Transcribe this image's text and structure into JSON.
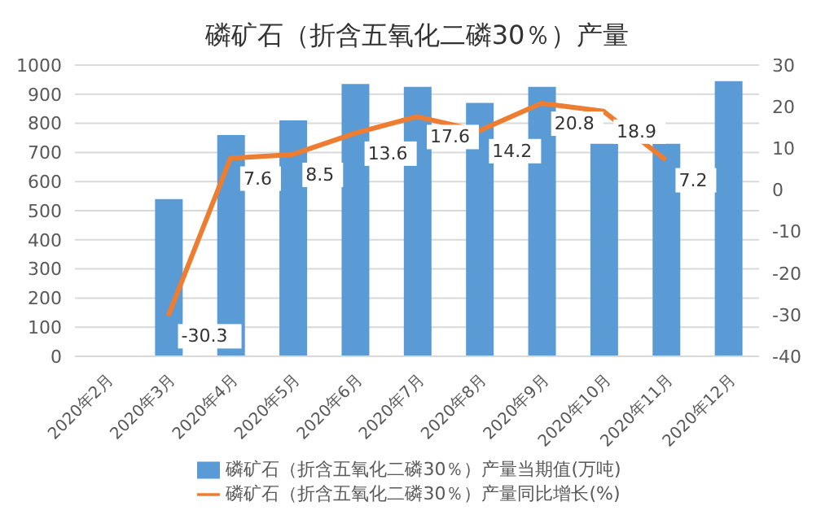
{
  "chart_data": {
    "type": "bar",
    "title": "磷矿石（折含五氧化二磷30％）产量",
    "categories": [
      "2020年2月",
      "2020年3月",
      "2020年4月",
      "2020年5月",
      "2020年6月",
      "2020年7月",
      "2020年8月",
      "2020年9月",
      "2020年10月",
      "2020年11月",
      "2020年12月"
    ],
    "series": [
      {
        "name": "磷矿石（折含五氧化二磷30％）产量当期值(万吨)",
        "color": "#5b9bd5",
        "values": [
          null,
          540,
          760,
          810,
          935,
          925,
          870,
          925,
          730,
          730,
          945
        ]
      },
      {
        "name": "磷矿石（折含五氧化二磷30％）产量同比增长(%)",
        "type": "line",
        "axis": "y2",
        "color": "#ed7d31",
        "values": [
          null,
          -30.3,
          7.6,
          8.5,
          13.6,
          17.6,
          14.2,
          20.8,
          18.9,
          7.2,
          null
        ],
        "value_labels": [
          null,
          "-30.3",
          "7.6",
          "8.5",
          "13.6",
          "17.6",
          "14.2",
          "20.8",
          "18.9",
          "7.2",
          null
        ]
      }
    ],
    "ylim": [
      0,
      1000
    ],
    "yticks": [
      0,
      100,
      200,
      300,
      400,
      500,
      600,
      700,
      800,
      900,
      1000
    ],
    "y2lim": [
      -40,
      30
    ],
    "y2ticks": [
      -40,
      -30,
      -20,
      -10,
      0,
      10,
      20,
      30
    ],
    "grid": "y",
    "legend": "bottom",
    "marker": "none"
  }
}
